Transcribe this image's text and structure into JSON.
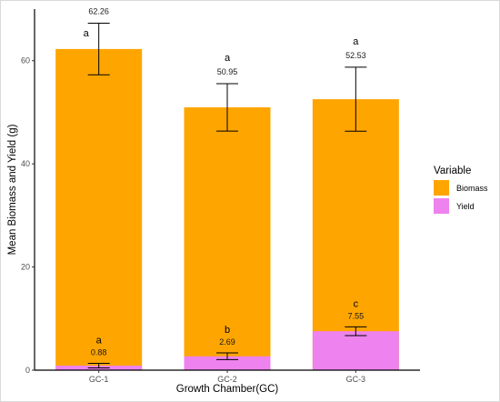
{
  "chart_data": {
    "type": "bar",
    "stacked": true,
    "title": "",
    "xlabel": "Growth Chamber(GC)",
    "ylabel": "Mean Biomass and Yield (g)",
    "categories": [
      "GC-1",
      "GC-2",
      "GC-3"
    ],
    "ylim": [
      0,
      70
    ],
    "yticks": [
      0,
      20,
      40,
      60
    ],
    "grid": false,
    "legend": {
      "title": "Variable",
      "position": "right"
    },
    "series": [
      {
        "name": "Biomass",
        "color": "#FFA500",
        "values": [
          62.26,
          50.95,
          52.53
        ],
        "value_labels": [
          "62.26",
          "50.95",
          "52.53"
        ],
        "error": [
          5.0,
          4.6,
          6.2
        ],
        "significance": [
          "a",
          "a",
          "a"
        ]
      },
      {
        "name": "Yield",
        "color": "#EE82EE",
        "values": [
          0.88,
          2.69,
          7.55
        ],
        "value_labels": [
          "0.88",
          "2.69",
          "7.55"
        ],
        "error": [
          0.45,
          0.65,
          0.85
        ],
        "significance": [
          "a",
          "b",
          "c"
        ]
      }
    ]
  }
}
